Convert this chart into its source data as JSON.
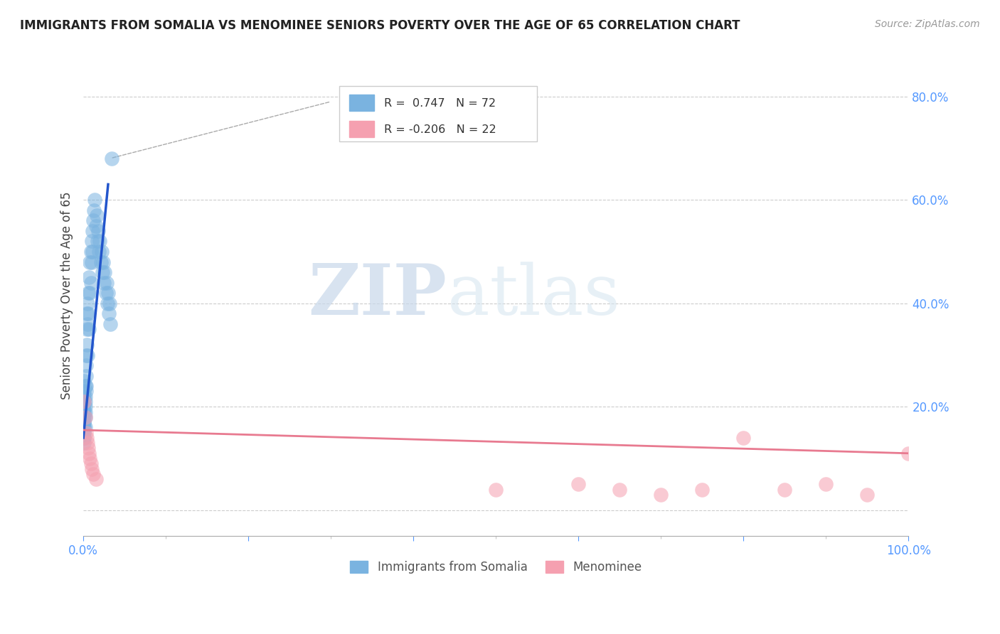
{
  "title": "IMMIGRANTS FROM SOMALIA VS MENOMINEE SENIORS POVERTY OVER THE AGE OF 65 CORRELATION CHART",
  "source": "Source: ZipAtlas.com",
  "ylabel": "Seniors Poverty Over the Age of 65",
  "xlabel": "",
  "xlim": [
    0.0,
    1.0
  ],
  "ylim": [
    -0.05,
    0.88
  ],
  "blue_R": 0.747,
  "blue_N": 72,
  "pink_R": -0.206,
  "pink_N": 22,
  "watermark_zip": "ZIP",
  "watermark_atlas": "atlas",
  "legend_label_blue": "Immigrants from Somalia",
  "legend_label_pink": "Menominee",
  "blue_scatter_x": [
    0.0005,
    0.001,
    0.001,
    0.001,
    0.001,
    0.001,
    0.001,
    0.001,
    0.001,
    0.001,
    0.001,
    0.001,
    0.001,
    0.001,
    0.001,
    0.001,
    0.001,
    0.001,
    0.001,
    0.002,
    0.002,
    0.002,
    0.002,
    0.002,
    0.002,
    0.002,
    0.003,
    0.003,
    0.003,
    0.003,
    0.003,
    0.004,
    0.004,
    0.004,
    0.005,
    0.005,
    0.005,
    0.006,
    0.006,
    0.007,
    0.007,
    0.008,
    0.008,
    0.009,
    0.009,
    0.01,
    0.01,
    0.011,
    0.011,
    0.012,
    0.013,
    0.014,
    0.015,
    0.016,
    0.017,
    0.018,
    0.019,
    0.02,
    0.021,
    0.022,
    0.023,
    0.024,
    0.025,
    0.026,
    0.027,
    0.028,
    0.029,
    0.03,
    0.031,
    0.032,
    0.033,
    0.034
  ],
  "blue_scatter_y": [
    0.19,
    0.2,
    0.22,
    0.18,
    0.21,
    0.15,
    0.17,
    0.14,
    0.16,
    0.13,
    0.19,
    0.21,
    0.23,
    0.25,
    0.18,
    0.17,
    0.16,
    0.15,
    0.14,
    0.22,
    0.2,
    0.24,
    0.18,
    0.16,
    0.19,
    0.21,
    0.3,
    0.28,
    0.26,
    0.24,
    0.23,
    0.35,
    0.32,
    0.38,
    0.4,
    0.36,
    0.3,
    0.42,
    0.38,
    0.45,
    0.35,
    0.48,
    0.42,
    0.5,
    0.44,
    0.52,
    0.48,
    0.54,
    0.5,
    0.56,
    0.58,
    0.6,
    0.55,
    0.57,
    0.52,
    0.54,
    0.5,
    0.52,
    0.48,
    0.5,
    0.46,
    0.48,
    0.44,
    0.46,
    0.42,
    0.44,
    0.4,
    0.42,
    0.38,
    0.4,
    0.36,
    0.68
  ],
  "pink_scatter_x": [
    0.001,
    0.002,
    0.003,
    0.004,
    0.005,
    0.006,
    0.007,
    0.008,
    0.009,
    0.01,
    0.012,
    0.015,
    0.5,
    0.6,
    0.65,
    0.7,
    0.75,
    0.8,
    0.85,
    0.9,
    0.95,
    1.0
  ],
  "pink_scatter_y": [
    0.21,
    0.18,
    0.15,
    0.14,
    0.13,
    0.12,
    0.11,
    0.1,
    0.09,
    0.08,
    0.07,
    0.06,
    0.04,
    0.05,
    0.04,
    0.03,
    0.04,
    0.14,
    0.04,
    0.05,
    0.03,
    0.11
  ],
  "ytick_positions": [
    0.0,
    0.2,
    0.4,
    0.6,
    0.8
  ],
  "ytick_labels": [
    "",
    "20.0%",
    "40.0%",
    "60.0%",
    "80.0%"
  ],
  "xtick_positions": [
    0.0,
    0.2,
    0.4,
    0.6,
    0.8,
    1.0
  ],
  "xtick_labels": [
    "0.0%",
    "",
    "",
    "",
    "",
    "100.0%"
  ],
  "grid_color": "#cccccc",
  "blue_color": "#7ab3e0",
  "pink_color": "#f5a0b0",
  "blue_line_color": "#2255cc",
  "pink_line_color": "#e87a90",
  "background_color": "#ffffff",
  "blue_line_x0": 0.0,
  "blue_line_y0": 0.14,
  "blue_line_x1": 0.03,
  "blue_line_y1": 0.63,
  "pink_line_x0": 0.0,
  "pink_line_y0": 0.155,
  "pink_line_x1": 1.0,
  "pink_line_y1": 0.11
}
